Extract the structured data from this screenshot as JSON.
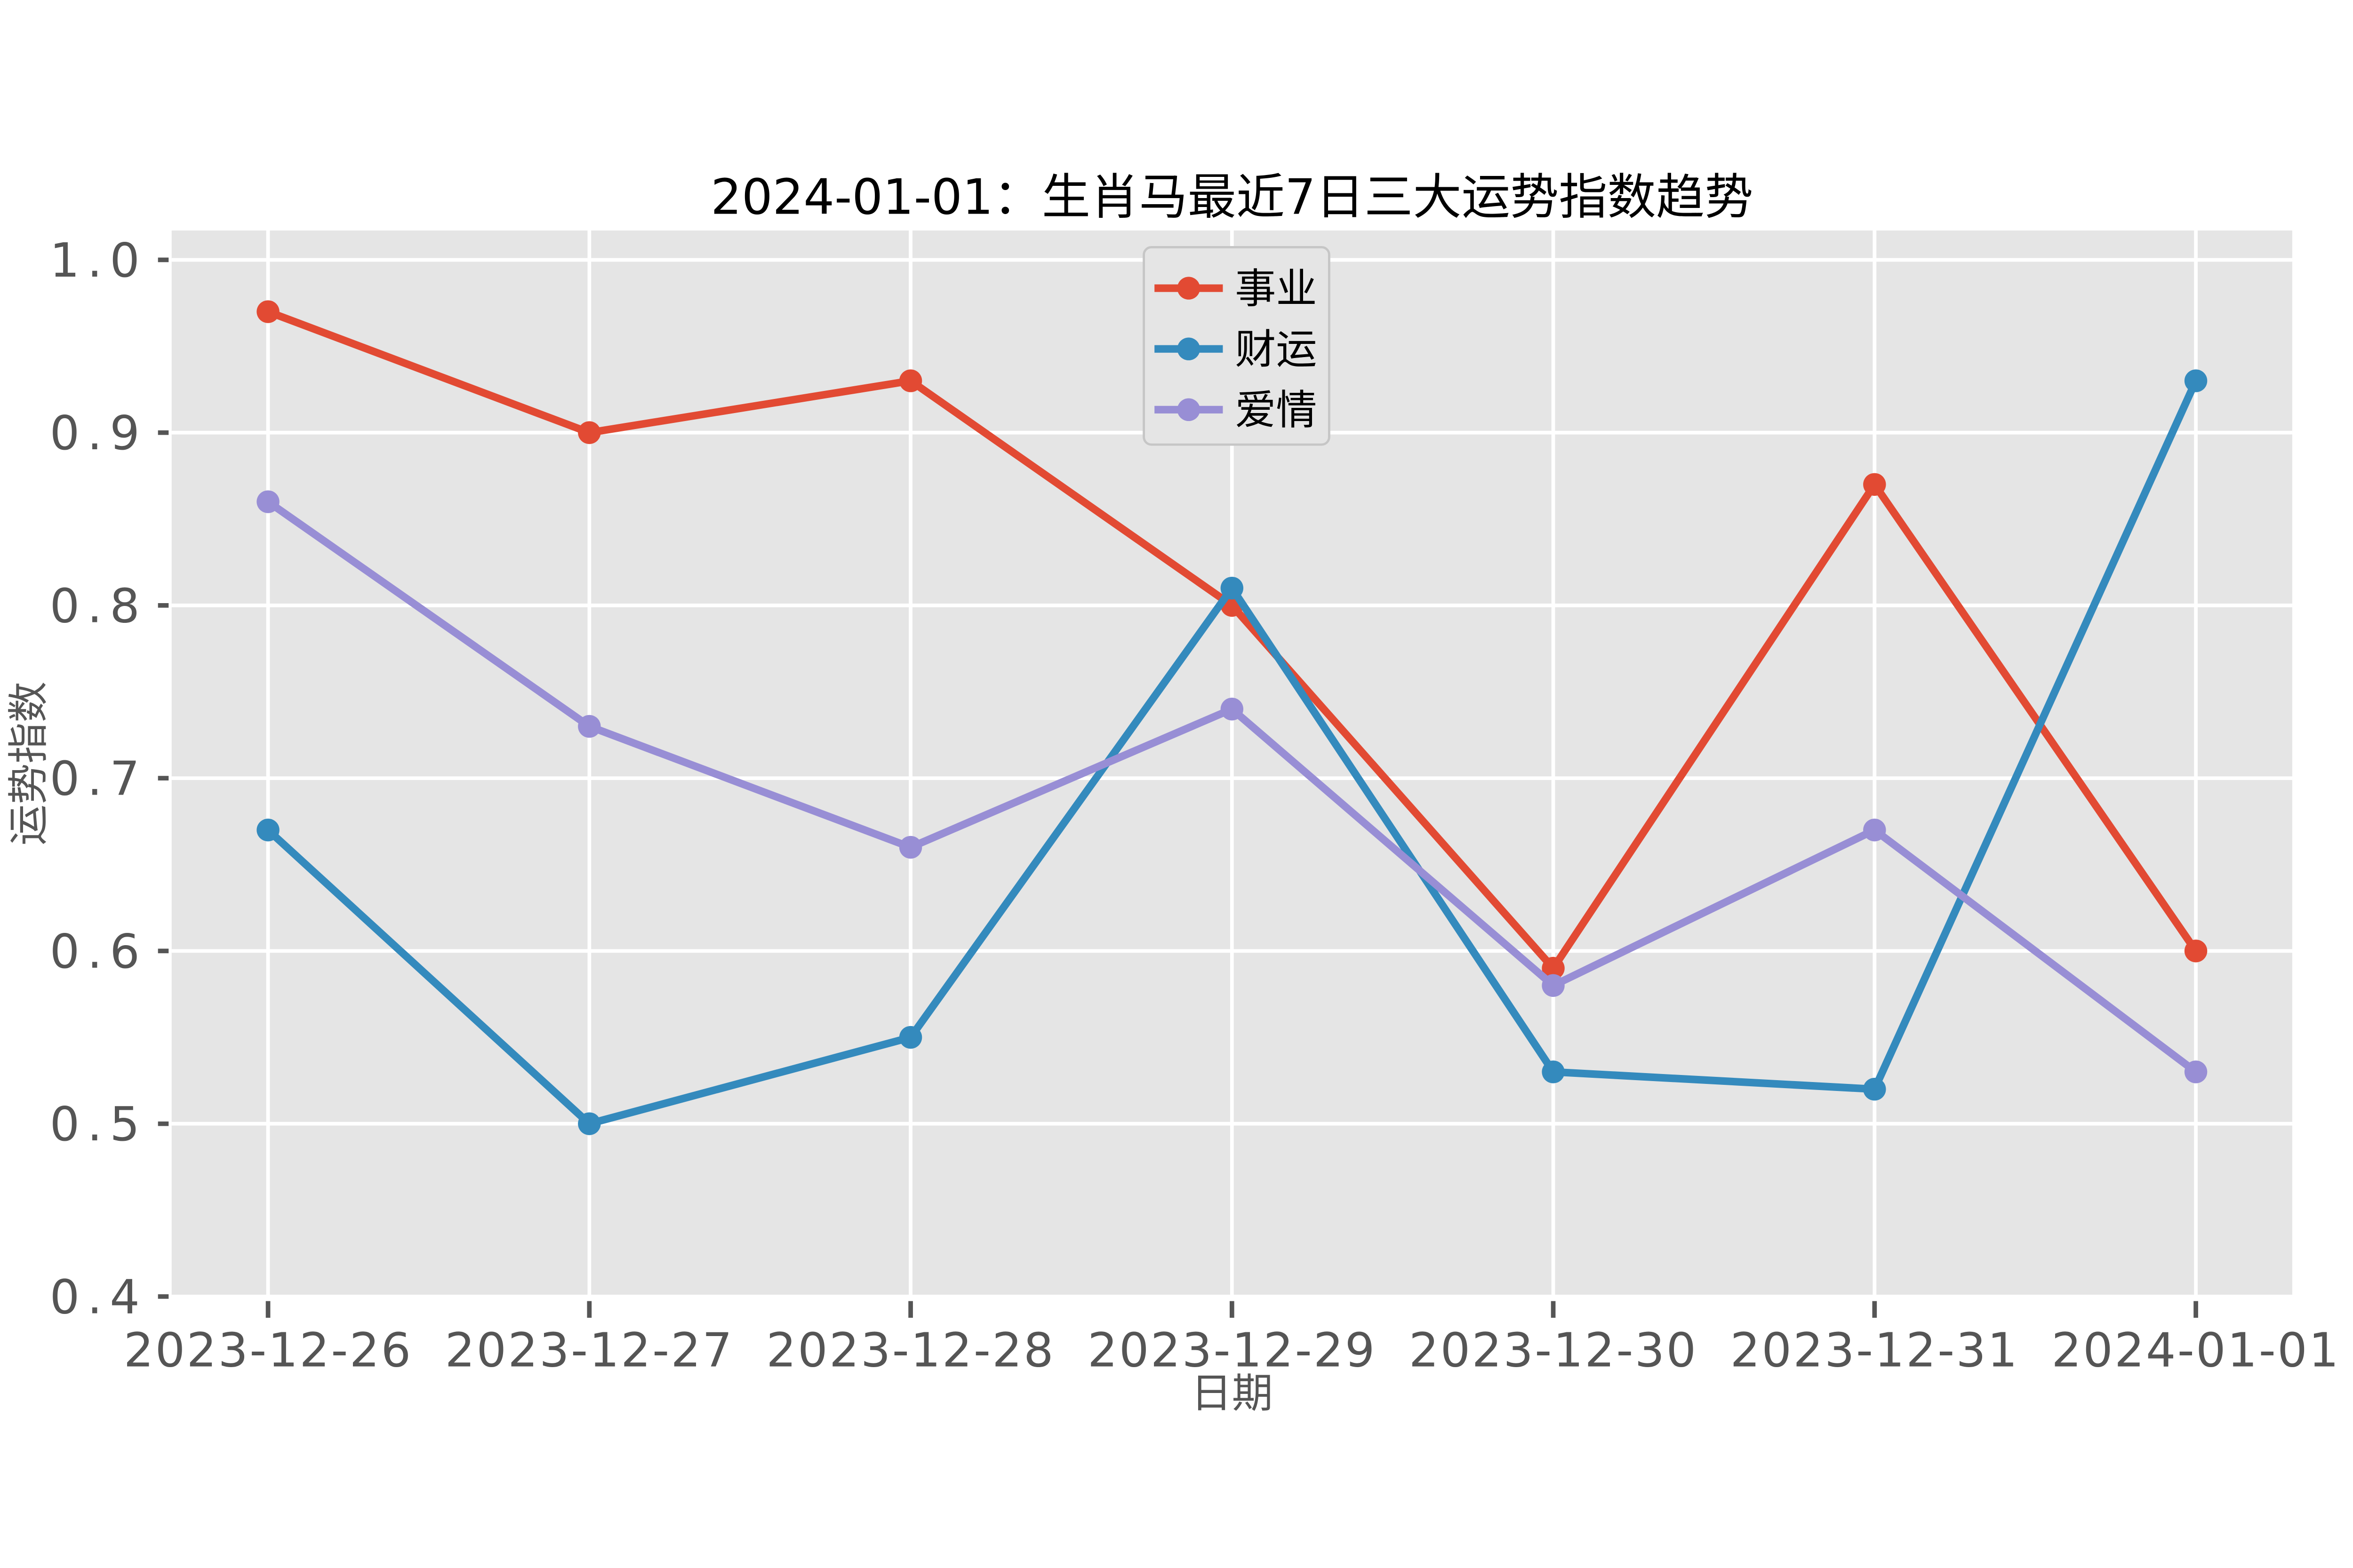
{
  "figure": {
    "background": "#ffffff",
    "plot_background": "#e5e5e5",
    "grid_color": "#ffffff",
    "tick_color": "#555555",
    "text_color": "#555555",
    "title_color": "#000000"
  },
  "chart_data": {
    "type": "line",
    "title": "2024-01-01：生肖马最近7日三大运势指数趋势",
    "xlabel": "日期",
    "ylabel": "运势指数",
    "categories": [
      "2023-12-26",
      "2023-12-27",
      "2023-12-28",
      "2023-12-29",
      "2023-12-30",
      "2023-12-31",
      "2024-01-01"
    ],
    "series": [
      {
        "name": "事业",
        "color": "#E24A33",
        "values": [
          0.97,
          0.9,
          0.93,
          0.8,
          0.59,
          0.87,
          0.6
        ]
      },
      {
        "name": "财运",
        "color": "#348ABD",
        "values": [
          0.67,
          0.5,
          0.55,
          0.81,
          0.53,
          0.52,
          0.93
        ]
      },
      {
        "name": "爱情",
        "color": "#988ED5",
        "values": [
          0.86,
          0.73,
          0.66,
          0.74,
          0.58,
          0.67,
          0.53
        ]
      }
    ],
    "yticks": [
      0.4,
      0.5,
      0.6,
      0.7,
      0.8,
      0.9,
      1.0
    ],
    "ytick_labels": [
      "0.4",
      "0.5",
      "0.6",
      "0.7",
      "0.8",
      "0.9",
      "1.0"
    ],
    "ylim": [
      0.4,
      1.017
    ],
    "grid": true,
    "legend_position": "upper center",
    "legend_entries": [
      "事业",
      "财运",
      "爱情"
    ]
  }
}
